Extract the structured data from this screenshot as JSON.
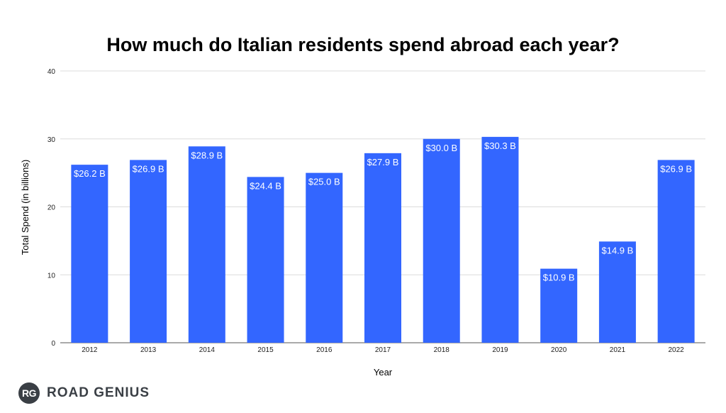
{
  "chart_data": {
    "type": "bar",
    "title": "How much do Italian residents spend abroad each year?",
    "xlabel": "Year",
    "ylabel": "Total Spend (in billions)",
    "categories": [
      "2012",
      "2013",
      "2014",
      "2015",
      "2016",
      "2017",
      "2018",
      "2019",
      "2020",
      "2021",
      "2022"
    ],
    "values": [
      26.2,
      26.9,
      28.9,
      24.4,
      25.0,
      27.9,
      30.0,
      30.3,
      10.9,
      14.9,
      26.9
    ],
    "data_labels": [
      "$26.2 B",
      "$26.9 B",
      "$28.9 B",
      "$24.4 B",
      "$25.0 B",
      "$27.9 B",
      "$30.0 B",
      "$30.3 B",
      "$10.9 B",
      "$14.9 B",
      "$26.9 B"
    ],
    "ylim": [
      0,
      40
    ],
    "yticks": [
      "0",
      "10",
      "20",
      "30",
      "40"
    ],
    "grid": true,
    "bar_color": "#3366ff"
  },
  "logo": {
    "badge": "RG",
    "text": "ROAD GENIUS"
  }
}
